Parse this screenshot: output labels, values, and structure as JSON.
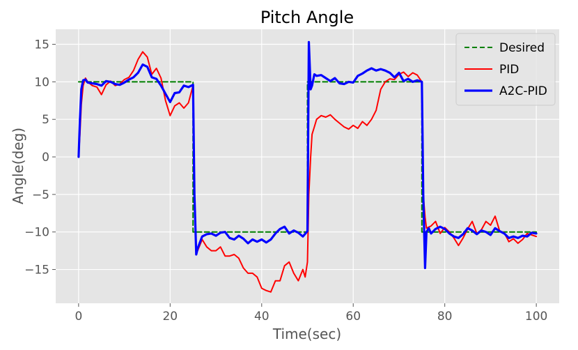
{
  "chart_data": {
    "type": "line",
    "title": "Pitch Angle",
    "xlabel": "Time(sec)",
    "ylabel": "Angle(deg)",
    "xlim": [
      -5,
      105
    ],
    "ylim": [
      -19.5,
      17
    ],
    "xticks": [
      0,
      20,
      40,
      60,
      80,
      100
    ],
    "yticks": [
      15,
      10,
      5,
      0,
      -5,
      -10,
      -15
    ],
    "xtick_labels": [
      "0",
      "20",
      "40",
      "60",
      "80",
      "100"
    ],
    "ytick_labels": [
      "15",
      "10",
      "5",
      "0",
      "−5",
      "−10",
      "−15"
    ],
    "grid": true,
    "legend_position": "top-right",
    "series": [
      {
        "name": "Desired",
        "color": "#008000",
        "style": "dashed",
        "x": [
          0,
          25,
          25,
          50,
          50,
          75,
          75,
          100
        ],
        "y": [
          10,
          10,
          -10,
          -10,
          10,
          10,
          -10,
          -10
        ]
      },
      {
        "name": "PID",
        "color": "#ff0000",
        "style": "solid",
        "x": [
          0,
          0.3,
          0.6,
          1,
          1.5,
          2,
          3,
          4,
          5,
          6,
          7,
          8,
          9,
          10,
          11,
          12,
          13,
          14,
          15,
          16,
          17,
          18,
          19,
          20,
          21,
          22,
          23,
          24,
          25,
          25.3,
          25.7,
          26,
          27,
          28,
          29,
          30,
          31,
          32,
          33,
          34,
          35,
          36,
          37,
          38,
          39,
          40,
          41,
          42,
          43,
          44,
          45,
          46,
          47,
          48,
          49,
          49.5,
          50,
          50.3,
          50.7,
          51,
          51.5,
          52,
          53,
          54,
          55,
          56,
          57,
          58,
          59,
          60,
          61,
          62,
          63,
          64,
          65,
          66,
          67,
          68,
          69,
          70,
          71,
          72,
          73,
          74,
          75,
          75.3,
          75.7,
          76,
          77,
          78,
          79,
          80,
          81,
          82,
          83,
          84,
          85,
          86,
          87,
          88,
          89,
          90,
          91,
          92,
          93,
          94,
          95,
          96,
          97,
          98,
          99,
          100
        ],
        "y": [
          0,
          3,
          7,
          9.5,
          10.5,
          10,
          9.5,
          9.3,
          8.3,
          9.6,
          10.1,
          9.5,
          9.7,
          10.3,
          10.6,
          11.5,
          13,
          14,
          13.3,
          11,
          11.8,
          10.5,
          7.5,
          5.5,
          6.8,
          7.2,
          6.5,
          7.2,
          9.5,
          -5,
          -12,
          -12.5,
          -11,
          -12,
          -12.5,
          -12.5,
          -12,
          -13.2,
          -13.2,
          -13,
          -13.5,
          -14.8,
          -15.5,
          -15.5,
          -16,
          -17.5,
          -17.8,
          -18,
          -16.5,
          -16.5,
          -14.5,
          -14,
          -15.5,
          -16.5,
          -15,
          -16,
          -14,
          -5,
          0,
          3,
          4,
          5,
          5.5,
          5.3,
          5.6,
          5,
          4.5,
          4,
          3.7,
          4.2,
          3.8,
          4.7,
          4.2,
          5,
          6.2,
          9,
          10,
          10.4,
          10.3,
          11,
          11.3,
          10.7,
          11.2,
          10.9,
          10,
          -5,
          -8,
          -9.5,
          -9.2,
          -8.6,
          -10.2,
          -9.4,
          -10,
          -10.8,
          -11.8,
          -10.8,
          -9.6,
          -8.6,
          -10.2,
          -9.7,
          -8.6,
          -9.1,
          -7.9,
          -9.9,
          -10.1,
          -11.3,
          -10.9,
          -11.5,
          -11,
          -10.2,
          -10.4,
          -10.6
        ]
      },
      {
        "name": "A2C-PID",
        "color": "#0000ff",
        "style": "solid-thick",
        "x": [
          0,
          0.3,
          0.6,
          1,
          1.5,
          2,
          3,
          4,
          5,
          6,
          7,
          8,
          9,
          10,
          11,
          12,
          13,
          14,
          15,
          16,
          17,
          18,
          19,
          20,
          21,
          22,
          23,
          24,
          25,
          25.3,
          25.7,
          26,
          27,
          28,
          29,
          30,
          31,
          32,
          33,
          34,
          35,
          36,
          37,
          38,
          39,
          40,
          41,
          42,
          43,
          44,
          45,
          46,
          47,
          48,
          49,
          50,
          50.3,
          50.7,
          51,
          51.5,
          52,
          53,
          54,
          55,
          56,
          57,
          58,
          59,
          60,
          61,
          62,
          63,
          64,
          65,
          66,
          67,
          68,
          69,
          70,
          71,
          72,
          73,
          74,
          75,
          75.3,
          75.7,
          76,
          76.5,
          77,
          78,
          79,
          80,
          81,
          82,
          83,
          84,
          85,
          86,
          87,
          88,
          89,
          90,
          91,
          92,
          93,
          94,
          95,
          96,
          97,
          98,
          99,
          100
        ],
        "y": [
          0,
          5,
          9,
          10.2,
          10.3,
          9.9,
          9.8,
          9.7,
          9.5,
          10.1,
          10,
          9.7,
          9.6,
          9.9,
          10.3,
          10.6,
          11.2,
          12.3,
          12,
          10.6,
          10.4,
          9.5,
          8.4,
          7.3,
          8.5,
          8.6,
          9.5,
          9.3,
          9.6,
          -5,
          -13,
          -12.2,
          -10.6,
          -10.3,
          -10.2,
          -10.5,
          -10.1,
          -10,
          -10.8,
          -11,
          -10.5,
          -10.9,
          -11.5,
          -11,
          -11.3,
          -11,
          -11.4,
          -11,
          -10.2,
          -9.6,
          -9.3,
          -10.2,
          -9.8,
          -10.1,
          -10.6,
          -9.9,
          15.3,
          9,
          9.5,
          11,
          10.8,
          10.9,
          10.5,
          10.1,
          10.5,
          9.8,
          9.7,
          10,
          9.9,
          10.8,
          11.1,
          11.5,
          11.8,
          11.5,
          11.7,
          11.5,
          11.2,
          10.6,
          11.2,
          10.1,
          10.4,
          10,
          10.2,
          10,
          -5,
          -14.8,
          -10,
          -9.5,
          -10.2,
          -9.6,
          -9.3,
          -9.6,
          -10.2,
          -10.6,
          -10.8,
          -10.3,
          -9.5,
          -9.8,
          -10.3,
          -9.8,
          -10,
          -10.4,
          -9.5,
          -9.9,
          -10.2,
          -10.8,
          -10.6,
          -10.8,
          -10.5,
          -10.6,
          -10.1,
          -10.2
        ]
      }
    ]
  }
}
